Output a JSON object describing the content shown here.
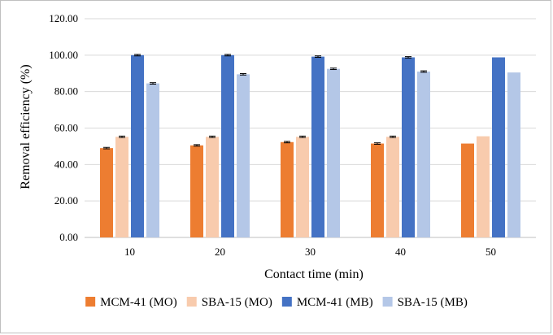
{
  "chart_data": {
    "type": "bar",
    "title": "",
    "xlabel": "Contact time (min)",
    "ylabel": "Removal efficiency (%)",
    "ylim": [
      0,
      120
    ],
    "ytick_step": 20,
    "ytick_labels": [
      "0.00",
      "20.00",
      "40.00",
      "60.00",
      "80.00",
      "100.00",
      "120.00"
    ],
    "grid": true,
    "legend_position": "bottom",
    "categories": [
      "10",
      "20",
      "30",
      "40",
      "50"
    ],
    "series": [
      {
        "name": "MCM-41 (MO)",
        "color": "#ED7D31",
        "values": [
          49.0,
          50.5,
          52.3,
          51.5,
          51.5
        ],
        "errors": [
          0.4,
          0.4,
          0.4,
          0.4,
          0
        ]
      },
      {
        "name": "SBA-15 (MO)",
        "color": "#F8CBAD",
        "values": [
          55.2,
          55.2,
          55.2,
          55.2,
          55.5
        ],
        "errors": [
          0.4,
          0.4,
          0.4,
          0.4,
          0
        ]
      },
      {
        "name": "MCM-41 (MB)",
        "color": "#4472C4",
        "values": [
          100.0,
          100.0,
          99.2,
          98.8,
          98.8
        ],
        "errors": [
          0.4,
          0.4,
          0.4,
          0.4,
          0
        ]
      },
      {
        "name": "SBA-15 (MB)",
        "color": "#B4C7E7",
        "values": [
          84.5,
          89.5,
          92.5,
          91.0,
          90.5
        ],
        "errors": [
          0.4,
          0.4,
          0.4,
          0.4,
          0
        ]
      }
    ]
  }
}
